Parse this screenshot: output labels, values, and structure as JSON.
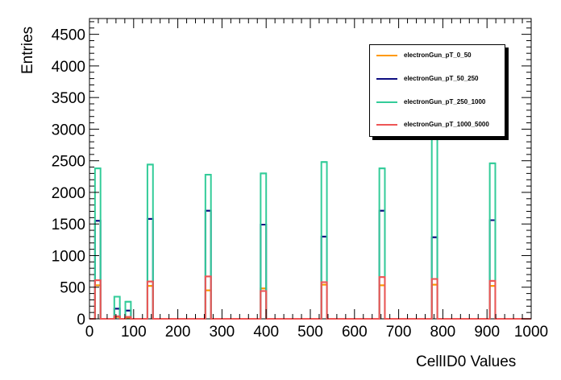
{
  "chart_data": {
    "type": "histogram",
    "title": "",
    "xlabel": "CellID0 Values",
    "ylabel": "Entries",
    "xlim": [
      0,
      1000
    ],
    "ylim": [
      0,
      4750
    ],
    "xticks": [
      0,
      100,
      200,
      300,
      400,
      500,
      600,
      700,
      800,
      900,
      1000
    ],
    "yticks": [
      0,
      500,
      1000,
      1500,
      2000,
      2500,
      3000,
      3500,
      4000,
      4500
    ],
    "bin_width": 12.5,
    "legend_position": "top-right",
    "grid": false,
    "series": [
      {
        "name": "electronGun_pT_0_50",
        "color": "#ff9900",
        "bins": [
          [
            18.75,
            530
          ],
          [
            62.5,
            30
          ],
          [
            87.5,
            20
          ],
          [
            137.5,
            520
          ],
          [
            268.75,
            450
          ],
          [
            393.75,
            480
          ],
          [
            531.25,
            540
          ],
          [
            662.5,
            530
          ],
          [
            781.25,
            540
          ],
          [
            912.5,
            520
          ]
        ]
      },
      {
        "name": "electronGun_pT_50_250",
        "color": "#0d0d80",
        "bins": [
          [
            18.75,
            1550
          ],
          [
            62.5,
            160
          ],
          [
            87.5,
            130
          ],
          [
            137.5,
            1580
          ],
          [
            268.75,
            1710
          ],
          [
            393.75,
            1490
          ],
          [
            531.25,
            1300
          ],
          [
            662.5,
            1710
          ],
          [
            781.25,
            1290
          ],
          [
            912.5,
            1560
          ]
        ]
      },
      {
        "name": "electronGun_pT_250_1000",
        "color": "#33cc99",
        "bins": [
          [
            18.75,
            2380
          ],
          [
            62.5,
            350
          ],
          [
            87.5,
            270
          ],
          [
            137.5,
            2440
          ],
          [
            268.75,
            2280
          ],
          [
            393.75,
            2300
          ],
          [
            531.25,
            2480
          ],
          [
            662.5,
            2380
          ],
          [
            781.25,
            2870
          ],
          [
            912.5,
            2460
          ]
        ]
      },
      {
        "name": "electronGun_pT_1000_5000",
        "color": "#ee5555",
        "bins": [
          [
            18.75,
            610
          ],
          [
            62.5,
            40
          ],
          [
            87.5,
            30
          ],
          [
            137.5,
            590
          ],
          [
            268.75,
            670
          ],
          [
            393.75,
            440
          ],
          [
            531.25,
            580
          ],
          [
            662.5,
            660
          ],
          [
            781.25,
            630
          ],
          [
            912.5,
            600
          ]
        ]
      }
    ]
  }
}
